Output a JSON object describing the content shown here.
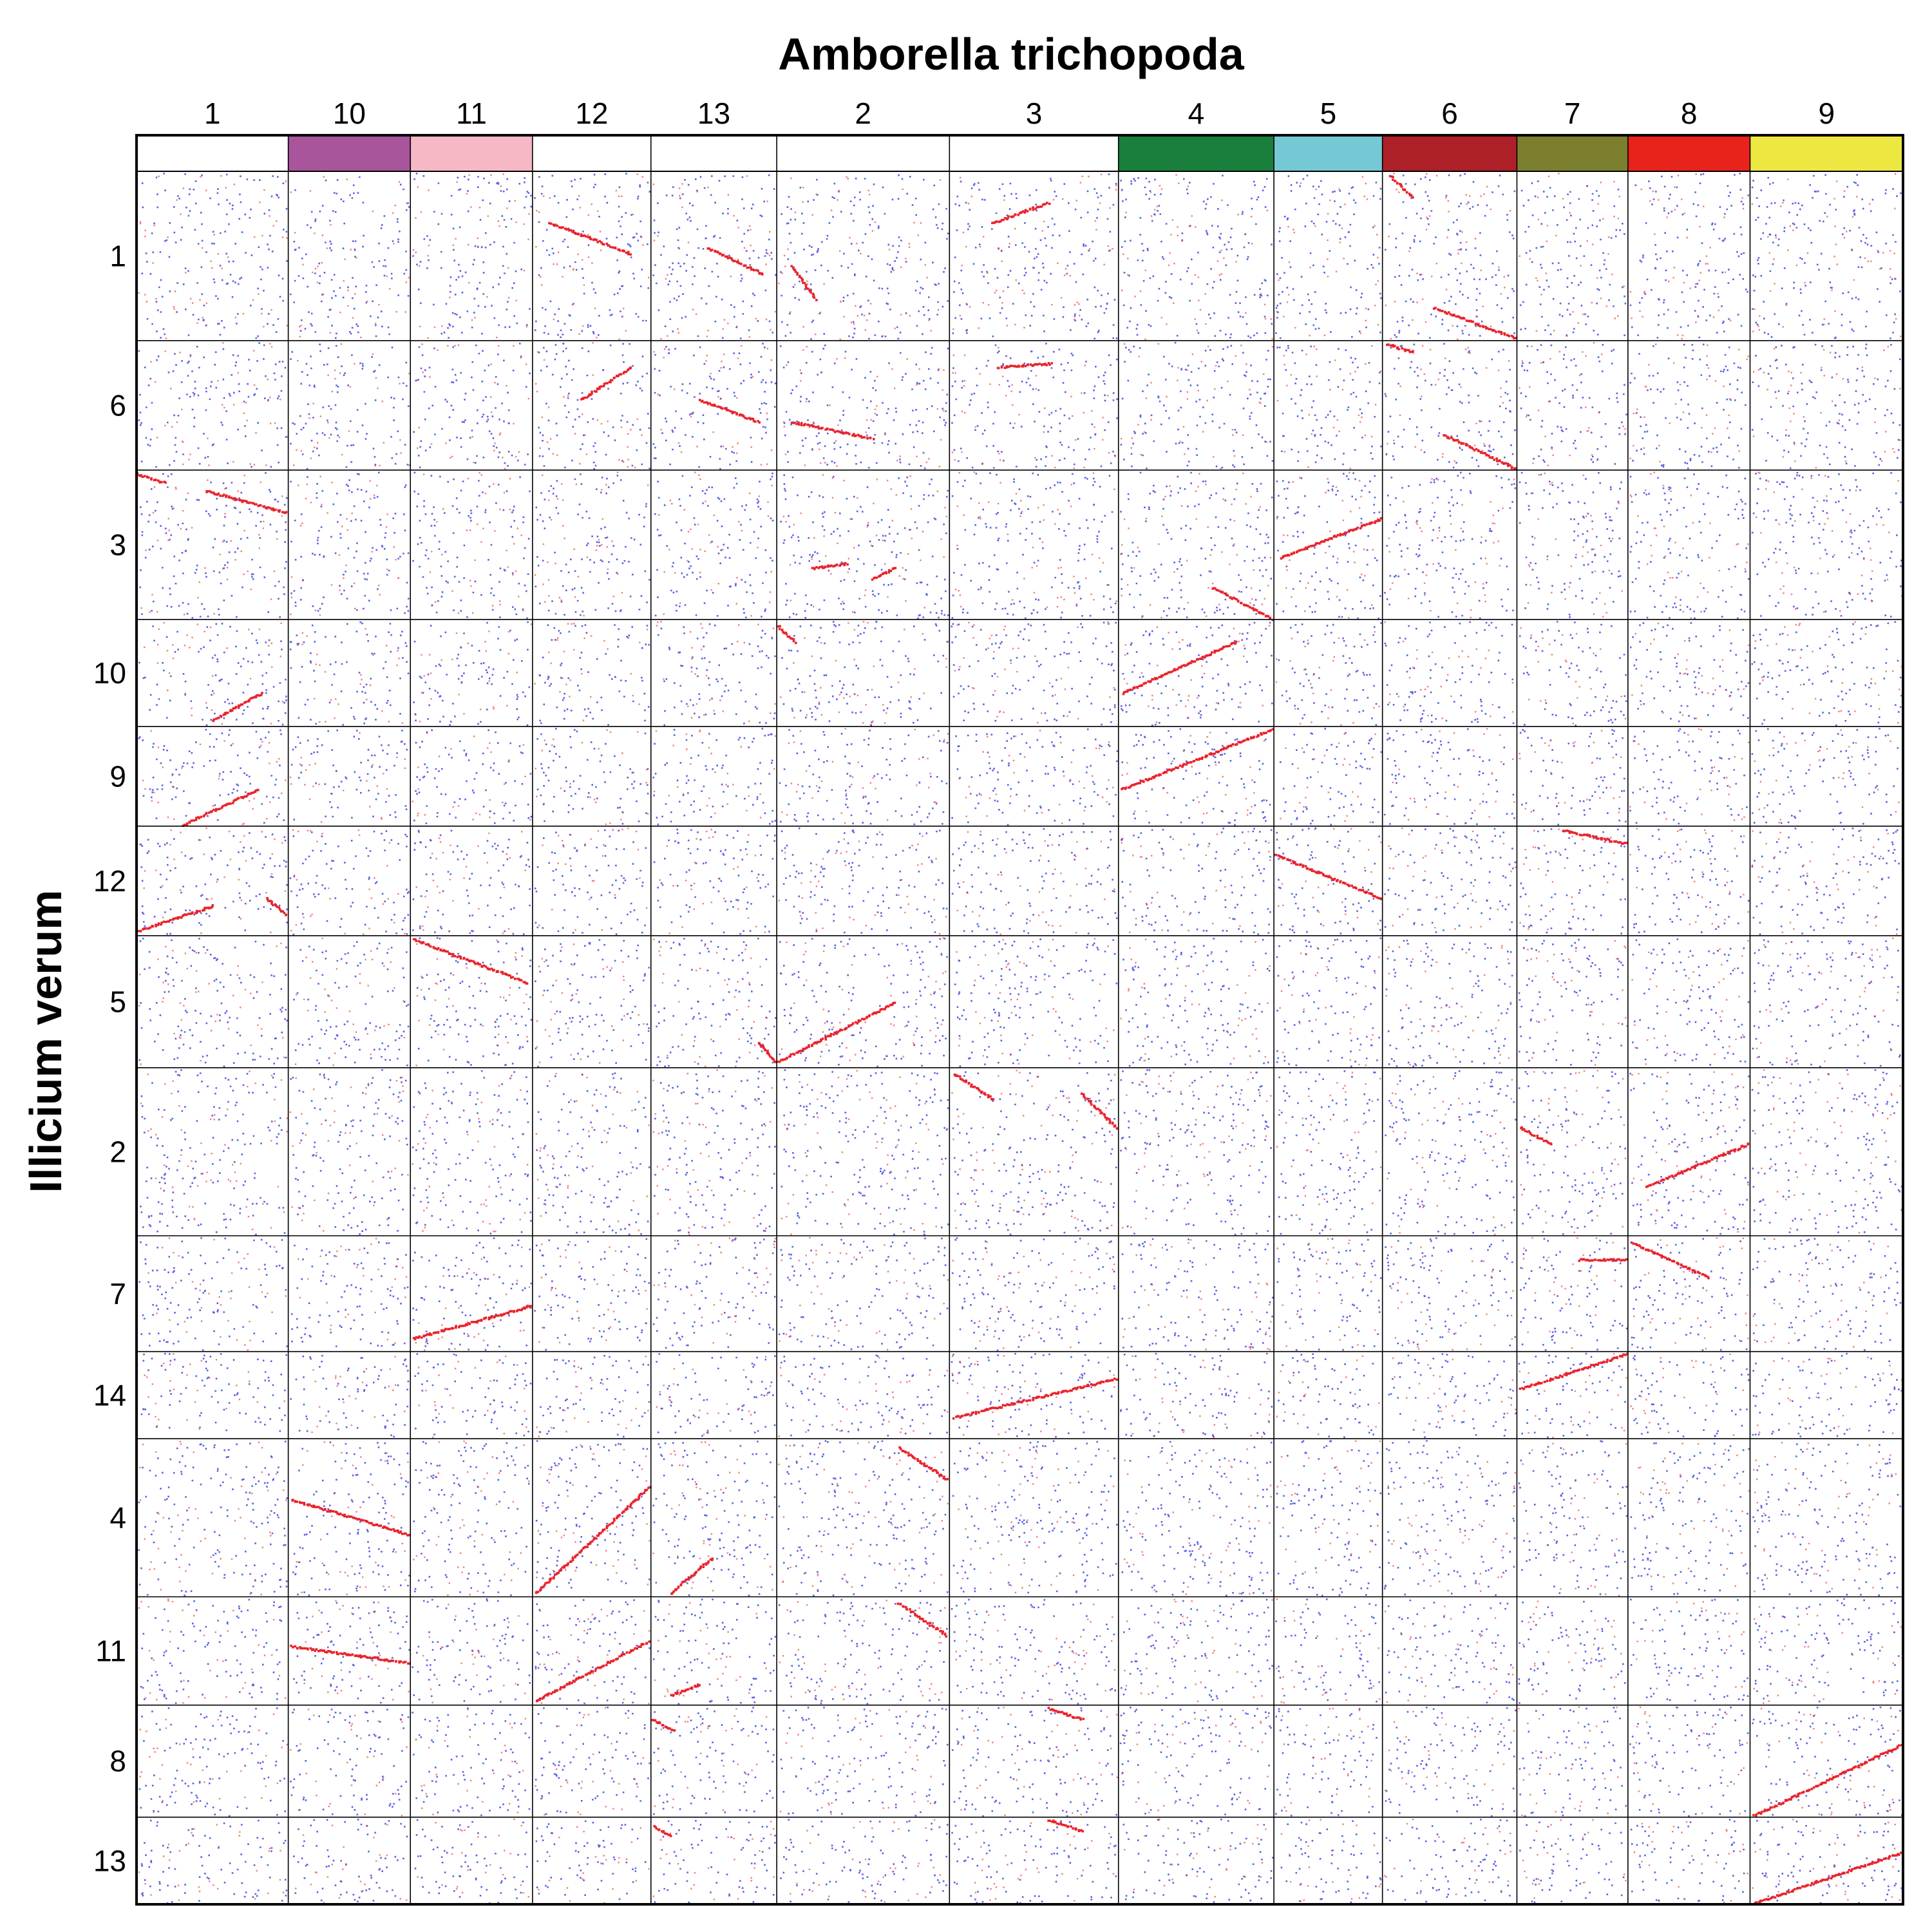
{
  "chart_data": {
    "type": "scatter",
    "title": "Amborella trichopoda",
    "xlabel": "Amborella trichopoda",
    "ylabel": "Illicium verum",
    "grid": true,
    "x_chromosomes": [
      {
        "label": "1",
        "length": 1.23,
        "color": ""
      },
      {
        "label": "10",
        "length": 0.99,
        "color": "#a8559b"
      },
      {
        "label": "11",
        "length": 0.99,
        "color": "#f5b8c4"
      },
      {
        "label": "12",
        "length": 0.96,
        "color": ""
      },
      {
        "label": "13",
        "length": 1.02,
        "color": ""
      },
      {
        "label": "2",
        "length": 1.4,
        "color": ""
      },
      {
        "label": "3",
        "length": 1.37,
        "color": ""
      },
      {
        "label": "4",
        "length": 1.26,
        "color": "#1a7f3c"
      },
      {
        "label": "5",
        "length": 0.88,
        "color": "#74c9d5"
      },
      {
        "label": "6",
        "length": 1.09,
        "color": "#ae2028"
      },
      {
        "label": "7",
        "length": 0.9,
        "color": "#7c7f2e"
      },
      {
        "label": "8",
        "length": 0.99,
        "color": "#e8231c"
      },
      {
        "label": "9",
        "length": 1.24,
        "color": "#ede841"
      }
    ],
    "y_chromosomes": [
      {
        "label": "1",
        "length": 1.36
      },
      {
        "label": "6",
        "length": 1.04
      },
      {
        "label": "3",
        "length": 1.2
      },
      {
        "label": "10",
        "length": 0.86
      },
      {
        "label": "9",
        "length": 0.8
      },
      {
        "label": "12",
        "length": 0.88
      },
      {
        "label": "5",
        "length": 1.06
      },
      {
        "label": "2",
        "length": 1.35
      },
      {
        "label": "7",
        "length": 0.93
      },
      {
        "label": "14",
        "length": 0.7
      },
      {
        "label": "4",
        "length": 1.27
      },
      {
        "label": "11",
        "length": 0.87
      },
      {
        "label": "8",
        "length": 0.9
      },
      {
        "label": "13",
        "length": 0.7
      }
    ],
    "series": [
      {
        "color": "#e8232c",
        "role": "syntenic blocks"
      },
      {
        "color": "#2a2ad8",
        "role": "background hits"
      }
    ],
    "blocks": [
      {
        "x_chr": "12",
        "y_chr": "1",
        "x": [
          0.14,
          0.82
        ],
        "y": [
          0.3,
          0.48
        ]
      },
      {
        "x_chr": "13",
        "y_chr": "1",
        "x": [
          0.45,
          0.88
        ],
        "y": [
          0.45,
          0.6
        ]
      },
      {
        "x_chr": "2",
        "y_chr": "1",
        "x": [
          0.08,
          0.22
        ],
        "y": [
          0.55,
          0.75
        ]
      },
      {
        "x_chr": "3",
        "y_chr": "1",
        "x": [
          0.25,
          0.58
        ],
        "y": [
          0.3,
          0.18
        ]
      },
      {
        "x_chr": "6",
        "y_chr": "1",
        "x": [
          0.05,
          0.22
        ],
        "y": [
          0.02,
          0.15
        ]
      },
      {
        "x_chr": "6",
        "y_chr": "1",
        "x": [
          0.38,
          0.98
        ],
        "y": [
          0.8,
          0.98
        ]
      },
      {
        "x_chr": "12",
        "y_chr": "6",
        "x": [
          0.4,
          0.82
        ],
        "y": [
          0.45,
          0.2
        ]
      },
      {
        "x_chr": "13",
        "y_chr": "6",
        "x": [
          0.38,
          0.85
        ],
        "y": [
          0.45,
          0.62
        ]
      },
      {
        "x_chr": "2",
        "y_chr": "6",
        "x": [
          0.08,
          0.55
        ],
        "y": [
          0.62,
          0.75
        ]
      },
      {
        "x_chr": "3",
        "y_chr": "6",
        "x": [
          0.28,
          0.6
        ],
        "y": [
          0.2,
          0.17
        ]
      },
      {
        "x_chr": "6",
        "y_chr": "6",
        "x": [
          0.02,
          0.22
        ],
        "y": [
          0.02,
          0.08
        ]
      },
      {
        "x_chr": "6",
        "y_chr": "6",
        "x": [
          0.45,
          0.98
        ],
        "y": [
          0.72,
          0.98
        ]
      },
      {
        "x_chr": "1",
        "y_chr": "3",
        "x": [
          0.0,
          0.18
        ],
        "y": [
          0.02,
          0.08
        ]
      },
      {
        "x_chr": "1",
        "y_chr": "3",
        "x": [
          0.45,
          0.98
        ],
        "y": [
          0.13,
          0.28
        ]
      },
      {
        "x_chr": "2",
        "y_chr": "3",
        "x": [
          0.2,
          0.4
        ],
        "y": [
          0.65,
          0.62
        ]
      },
      {
        "x_chr": "2",
        "y_chr": "3",
        "x": [
          0.55,
          0.68
        ],
        "y": [
          0.72,
          0.65
        ]
      },
      {
        "x_chr": "4",
        "y_chr": "3",
        "x": [
          0.6,
          0.98
        ],
        "y": [
          0.78,
          0.99
        ]
      },
      {
        "x_chr": "5",
        "y_chr": "3",
        "x": [
          0.05,
          0.98
        ],
        "y": [
          0.58,
          0.32
        ]
      },
      {
        "x_chr": "2",
        "y_chr": "10",
        "x": [
          0.0,
          0.1
        ],
        "y": [
          0.05,
          0.2
        ]
      },
      {
        "x_chr": "1",
        "y_chr": "10",
        "x": [
          0.5,
          0.82
        ],
        "y": [
          0.93,
          0.68
        ]
      },
      {
        "x_chr": "4",
        "y_chr": "10",
        "x": [
          0.02,
          0.75
        ],
        "y": [
          0.68,
          0.2
        ]
      },
      {
        "x_chr": "1",
        "y_chr": "9",
        "x": [
          0.3,
          0.8
        ],
        "y": [
          0.98,
          0.62
        ]
      },
      {
        "x_chr": "4",
        "y_chr": "9",
        "x": [
          0.02,
          0.98
        ],
        "y": [
          0.62,
          0.02
        ]
      },
      {
        "x_chr": "1",
        "y_chr": "12",
        "x": [
          0.0,
          0.5
        ],
        "y": [
          0.95,
          0.72
        ]
      },
      {
        "x_chr": "1",
        "y_chr": "12",
        "x": [
          0.85,
          0.98
        ],
        "y": [
          0.65,
          0.8
        ]
      },
      {
        "x_chr": "5",
        "y_chr": "12",
        "x": [
          0.0,
          0.98
        ],
        "y": [
          0.25,
          0.65
        ]
      },
      {
        "x_chr": "7",
        "y_chr": "12",
        "x": [
          0.4,
          0.98
        ],
        "y": [
          0.03,
          0.15
        ]
      },
      {
        "x_chr": "11",
        "y_chr": "5",
        "x": [
          0.02,
          0.95
        ],
        "y": [
          0.02,
          0.35
        ]
      },
      {
        "x_chr": "13",
        "y_chr": "5",
        "x": [
          0.85,
          0.98
        ],
        "y": [
          0.8,
          0.95
        ]
      },
      {
        "x_chr": "2",
        "y_chr": "5",
        "x": [
          0.0,
          0.68
        ],
        "y": [
          0.95,
          0.5
        ]
      },
      {
        "x_chr": "3",
        "y_chr": "2",
        "x": [
          0.02,
          0.25
        ],
        "y": [
          0.03,
          0.18
        ]
      },
      {
        "x_chr": "3",
        "y_chr": "2",
        "x": [
          0.78,
          0.98
        ],
        "y": [
          0.15,
          0.35
        ]
      },
      {
        "x_chr": "7",
        "y_chr": "2",
        "x": [
          0.02,
          0.3
        ],
        "y": [
          0.35,
          0.45
        ]
      },
      {
        "x_chr": "8",
        "y_chr": "2",
        "x": [
          0.15,
          0.98
        ],
        "y": [
          0.7,
          0.45
        ]
      },
      {
        "x_chr": "11",
        "y_chr": "7",
        "x": [
          0.02,
          0.98
        ],
        "y": [
          0.88,
          0.6
        ]
      },
      {
        "x_chr": "7",
        "y_chr": "7",
        "x": [
          0.55,
          0.98
        ],
        "y": [
          0.2,
          0.2
        ]
      },
      {
        "x_chr": "8",
        "y_chr": "7",
        "x": [
          0.02,
          0.65
        ],
        "y": [
          0.05,
          0.35
        ]
      },
      {
        "x_chr": "3",
        "y_chr": "14",
        "x": [
          0.02,
          0.98
        ],
        "y": [
          0.75,
          0.3
        ]
      },
      {
        "x_chr": "7",
        "y_chr": "14",
        "x": [
          0.02,
          0.98
        ],
        "y": [
          0.42,
          0.02
        ]
      },
      {
        "x_chr": "10",
        "y_chr": "4",
        "x": [
          0.02,
          0.98
        ],
        "y": [
          0.38,
          0.6
        ]
      },
      {
        "x_chr": "12",
        "y_chr": "4",
        "x": [
          0.02,
          0.98
        ],
        "y": [
          0.97,
          0.3
        ]
      },
      {
        "x_chr": "13",
        "y_chr": "4",
        "x": [
          0.15,
          0.48
        ],
        "y": [
          0.97,
          0.75
        ]
      },
      {
        "x_chr": "2",
        "y_chr": "4",
        "x": [
          0.7,
          0.98
        ],
        "y": [
          0.05,
          0.25
        ]
      },
      {
        "x_chr": "10",
        "y_chr": "11",
        "x": [
          0.02,
          0.98
        ],
        "y": [
          0.45,
          0.6
        ]
      },
      {
        "x_chr": "12",
        "y_chr": "11",
        "x": [
          0.02,
          0.98
        ],
        "y": [
          0.95,
          0.4
        ]
      },
      {
        "x_chr": "13",
        "y_chr": "11",
        "x": [
          0.15,
          0.38
        ],
        "y": [
          0.9,
          0.8
        ]
      },
      {
        "x_chr": "2",
        "y_chr": "11",
        "x": [
          0.7,
          0.98
        ],
        "y": [
          0.05,
          0.35
        ]
      },
      {
        "x_chr": "13",
        "y_chr": "8",
        "x": [
          0.0,
          0.18
        ],
        "y": [
          0.12,
          0.22
        ]
      },
      {
        "x_chr": "3",
        "y_chr": "8",
        "x": [
          0.58,
          0.78
        ],
        "y": [
          0.02,
          0.12
        ]
      },
      {
        "x_chr": "9",
        "y_chr": "8",
        "x": [
          0.02,
          0.98
        ],
        "y": [
          0.98,
          0.35
        ]
      },
      {
        "x_chr": "13",
        "y_chr": "13",
        "x": [
          0.02,
          0.15
        ],
        "y": [
          0.1,
          0.2
        ]
      },
      {
        "x_chr": "3",
        "y_chr": "13",
        "x": [
          0.58,
          0.78
        ],
        "y": [
          0.02,
          0.15
        ]
      },
      {
        "x_chr": "9",
        "y_chr": "13",
        "x": [
          0.02,
          0.98
        ],
        "y": [
          0.98,
          0.4
        ]
      }
    ]
  }
}
